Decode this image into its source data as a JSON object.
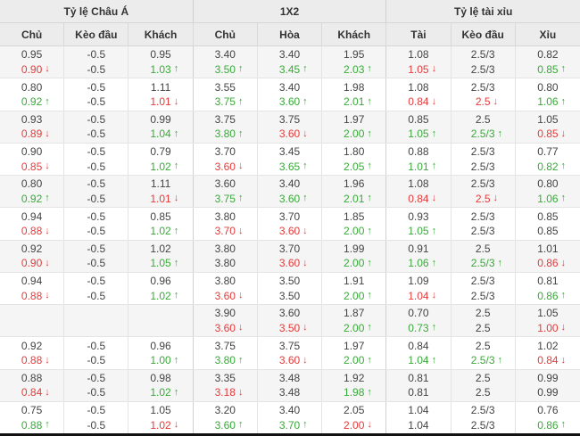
{
  "table": {
    "groups": [
      {
        "label": "Tỷ lệ Châu Á"
      },
      {
        "label": "1X2"
      },
      {
        "label": "Tỷ lệ tài xỉu"
      }
    ],
    "columns": [
      "Chủ",
      "Kèo đầu",
      "Khách",
      "Chủ",
      "Hòa",
      "Khách",
      "Tài",
      "Kèo đầu",
      "Xỉu"
    ],
    "icons": {
      "up_arrow": "↑",
      "down_arrow": "↓"
    },
    "colors": {
      "up": "#3aa93a",
      "down": "#e43b3b",
      "text": "#444444",
      "header_bg": "#ececec",
      "row_alt_bg": "#f5f5f5",
      "border": "#e4e4e4"
    },
    "rows": [
      {
        "line1": [
          {
            "v": "0.95",
            "d": ""
          },
          {
            "v": "-0.5",
            "d": ""
          },
          {
            "v": "0.95",
            "d": ""
          },
          {
            "v": "3.40",
            "d": ""
          },
          {
            "v": "3.40",
            "d": ""
          },
          {
            "v": "1.95",
            "d": ""
          },
          {
            "v": "1.08",
            "d": ""
          },
          {
            "v": "2.5/3",
            "d": ""
          },
          {
            "v": "0.82",
            "d": ""
          }
        ],
        "line2": [
          {
            "v": "0.90",
            "d": "d"
          },
          {
            "v": "-0.5",
            "d": ""
          },
          {
            "v": "1.03",
            "d": "u"
          },
          {
            "v": "3.50",
            "d": "u"
          },
          {
            "v": "3.45",
            "d": "u"
          },
          {
            "v": "2.03",
            "d": "u"
          },
          {
            "v": "1.05",
            "d": "d"
          },
          {
            "v": "2.5/3",
            "d": ""
          },
          {
            "v": "0.85",
            "d": "u"
          }
        ]
      },
      {
        "line1": [
          {
            "v": "0.80",
            "d": ""
          },
          {
            "v": "-0.5",
            "d": ""
          },
          {
            "v": "1.11",
            "d": ""
          },
          {
            "v": "3.55",
            "d": ""
          },
          {
            "v": "3.40",
            "d": ""
          },
          {
            "v": "1.98",
            "d": ""
          },
          {
            "v": "1.08",
            "d": ""
          },
          {
            "v": "2.5/3",
            "d": ""
          },
          {
            "v": "0.80",
            "d": ""
          }
        ],
        "line2": [
          {
            "v": "0.92",
            "d": "u"
          },
          {
            "v": "-0.5",
            "d": ""
          },
          {
            "v": "1.01",
            "d": "d"
          },
          {
            "v": "3.75",
            "d": "u"
          },
          {
            "v": "3.60",
            "d": "u"
          },
          {
            "v": "2.01",
            "d": "u"
          },
          {
            "v": "0.84",
            "d": "d"
          },
          {
            "v": "2.5",
            "d": "d"
          },
          {
            "v": "1.06",
            "d": "u"
          }
        ]
      },
      {
        "line1": [
          {
            "v": "0.93",
            "d": ""
          },
          {
            "v": "-0.5",
            "d": ""
          },
          {
            "v": "0.99",
            "d": ""
          },
          {
            "v": "3.75",
            "d": ""
          },
          {
            "v": "3.75",
            "d": ""
          },
          {
            "v": "1.97",
            "d": ""
          },
          {
            "v": "0.85",
            "d": ""
          },
          {
            "v": "2.5",
            "d": ""
          },
          {
            "v": "1.05",
            "d": ""
          }
        ],
        "line2": [
          {
            "v": "0.89",
            "d": "d"
          },
          {
            "v": "-0.5",
            "d": ""
          },
          {
            "v": "1.04",
            "d": "u"
          },
          {
            "v": "3.80",
            "d": "u"
          },
          {
            "v": "3.60",
            "d": "d"
          },
          {
            "v": "2.00",
            "d": "u"
          },
          {
            "v": "1.05",
            "d": "u"
          },
          {
            "v": "2.5/3",
            "d": "u"
          },
          {
            "v": "0.85",
            "d": "d"
          }
        ]
      },
      {
        "line1": [
          {
            "v": "0.90",
            "d": ""
          },
          {
            "v": "-0.5",
            "d": ""
          },
          {
            "v": "0.79",
            "d": ""
          },
          {
            "v": "3.70",
            "d": ""
          },
          {
            "v": "3.45",
            "d": ""
          },
          {
            "v": "1.80",
            "d": ""
          },
          {
            "v": "0.88",
            "d": ""
          },
          {
            "v": "2.5/3",
            "d": ""
          },
          {
            "v": "0.77",
            "d": ""
          }
        ],
        "line2": [
          {
            "v": "0.85",
            "d": "d"
          },
          {
            "v": "-0.5",
            "d": ""
          },
          {
            "v": "1.02",
            "d": "u"
          },
          {
            "v": "3.60",
            "d": "d"
          },
          {
            "v": "3.65",
            "d": "u"
          },
          {
            "v": "2.05",
            "d": "u"
          },
          {
            "v": "1.01",
            "d": "u"
          },
          {
            "v": "2.5/3",
            "d": ""
          },
          {
            "v": "0.82",
            "d": "u"
          }
        ]
      },
      {
        "line1": [
          {
            "v": "0.80",
            "d": ""
          },
          {
            "v": "-0.5",
            "d": ""
          },
          {
            "v": "1.11",
            "d": ""
          },
          {
            "v": "3.60",
            "d": ""
          },
          {
            "v": "3.40",
            "d": ""
          },
          {
            "v": "1.96",
            "d": ""
          },
          {
            "v": "1.08",
            "d": ""
          },
          {
            "v": "2.5/3",
            "d": ""
          },
          {
            "v": "0.80",
            "d": ""
          }
        ],
        "line2": [
          {
            "v": "0.92",
            "d": "u"
          },
          {
            "v": "-0.5",
            "d": ""
          },
          {
            "v": "1.01",
            "d": "d"
          },
          {
            "v": "3.75",
            "d": "u"
          },
          {
            "v": "3.60",
            "d": "u"
          },
          {
            "v": "2.01",
            "d": "u"
          },
          {
            "v": "0.84",
            "d": "d"
          },
          {
            "v": "2.5",
            "d": "d"
          },
          {
            "v": "1.06",
            "d": "u"
          }
        ]
      },
      {
        "line1": [
          {
            "v": "0.94",
            "d": ""
          },
          {
            "v": "-0.5",
            "d": ""
          },
          {
            "v": "0.85",
            "d": ""
          },
          {
            "v": "3.80",
            "d": ""
          },
          {
            "v": "3.70",
            "d": ""
          },
          {
            "v": "1.85",
            "d": ""
          },
          {
            "v": "0.93",
            "d": ""
          },
          {
            "v": "2.5/3",
            "d": ""
          },
          {
            "v": "0.85",
            "d": ""
          }
        ],
        "line2": [
          {
            "v": "0.88",
            "d": "d"
          },
          {
            "v": "-0.5",
            "d": ""
          },
          {
            "v": "1.02",
            "d": "u"
          },
          {
            "v": "3.70",
            "d": "d"
          },
          {
            "v": "3.60",
            "d": "d"
          },
          {
            "v": "2.00",
            "d": "u"
          },
          {
            "v": "1.05",
            "d": "u"
          },
          {
            "v": "2.5/3",
            "d": ""
          },
          {
            "v": "0.85",
            "d": ""
          }
        ]
      },
      {
        "line1": [
          {
            "v": "0.92",
            "d": ""
          },
          {
            "v": "-0.5",
            "d": ""
          },
          {
            "v": "1.02",
            "d": ""
          },
          {
            "v": "3.80",
            "d": ""
          },
          {
            "v": "3.70",
            "d": ""
          },
          {
            "v": "1.99",
            "d": ""
          },
          {
            "v": "0.91",
            "d": ""
          },
          {
            "v": "2.5",
            "d": ""
          },
          {
            "v": "1.01",
            "d": ""
          }
        ],
        "line2": [
          {
            "v": "0.90",
            "d": "d"
          },
          {
            "v": "-0.5",
            "d": ""
          },
          {
            "v": "1.05",
            "d": "u"
          },
          {
            "v": "3.80",
            "d": ""
          },
          {
            "v": "3.60",
            "d": "d"
          },
          {
            "v": "2.00",
            "d": "u"
          },
          {
            "v": "1.06",
            "d": "u"
          },
          {
            "v": "2.5/3",
            "d": "u"
          },
          {
            "v": "0.86",
            "d": "d"
          }
        ]
      },
      {
        "line1": [
          {
            "v": "0.94",
            "d": ""
          },
          {
            "v": "-0.5",
            "d": ""
          },
          {
            "v": "0.96",
            "d": ""
          },
          {
            "v": "3.80",
            "d": ""
          },
          {
            "v": "3.50",
            "d": ""
          },
          {
            "v": "1.91",
            "d": ""
          },
          {
            "v": "1.09",
            "d": ""
          },
          {
            "v": "2.5/3",
            "d": ""
          },
          {
            "v": "0.81",
            "d": ""
          }
        ],
        "line2": [
          {
            "v": "0.88",
            "d": "d"
          },
          {
            "v": "-0.5",
            "d": ""
          },
          {
            "v": "1.02",
            "d": "u"
          },
          {
            "v": "3.60",
            "d": "d"
          },
          {
            "v": "3.50",
            "d": ""
          },
          {
            "v": "2.00",
            "d": "u"
          },
          {
            "v": "1.04",
            "d": "d"
          },
          {
            "v": "2.5/3",
            "d": ""
          },
          {
            "v": "0.86",
            "d": "u"
          }
        ]
      },
      {
        "line1": [
          {
            "v": "",
            "d": ""
          },
          {
            "v": "",
            "d": ""
          },
          {
            "v": "",
            "d": ""
          },
          {
            "v": "3.90",
            "d": ""
          },
          {
            "v": "3.60",
            "d": ""
          },
          {
            "v": "1.87",
            "d": ""
          },
          {
            "v": "0.70",
            "d": ""
          },
          {
            "v": "2.5",
            "d": ""
          },
          {
            "v": "1.05",
            "d": ""
          }
        ],
        "line2": [
          {
            "v": "",
            "d": ""
          },
          {
            "v": "",
            "d": ""
          },
          {
            "v": "",
            "d": ""
          },
          {
            "v": "3.60",
            "d": "d"
          },
          {
            "v": "3.50",
            "d": "d"
          },
          {
            "v": "2.00",
            "d": "u"
          },
          {
            "v": "0.73",
            "d": "u"
          },
          {
            "v": "2.5",
            "d": ""
          },
          {
            "v": "1.00",
            "d": "d"
          }
        ]
      },
      {
        "line1": [
          {
            "v": "0.92",
            "d": ""
          },
          {
            "v": "-0.5",
            "d": ""
          },
          {
            "v": "0.96",
            "d": ""
          },
          {
            "v": "3.75",
            "d": ""
          },
          {
            "v": "3.75",
            "d": ""
          },
          {
            "v": "1.97",
            "d": ""
          },
          {
            "v": "0.84",
            "d": ""
          },
          {
            "v": "2.5",
            "d": ""
          },
          {
            "v": "1.02",
            "d": ""
          }
        ],
        "line2": [
          {
            "v": "0.88",
            "d": "d"
          },
          {
            "v": "-0.5",
            "d": ""
          },
          {
            "v": "1.00",
            "d": "u"
          },
          {
            "v": "3.80",
            "d": "u"
          },
          {
            "v": "3.60",
            "d": "d"
          },
          {
            "v": "2.00",
            "d": "u"
          },
          {
            "v": "1.04",
            "d": "u"
          },
          {
            "v": "2.5/3",
            "d": "u"
          },
          {
            "v": "0.84",
            "d": "d"
          }
        ]
      },
      {
        "line1": [
          {
            "v": "0.88",
            "d": ""
          },
          {
            "v": "-0.5",
            "d": ""
          },
          {
            "v": "0.98",
            "d": ""
          },
          {
            "v": "3.35",
            "d": ""
          },
          {
            "v": "3.48",
            "d": ""
          },
          {
            "v": "1.92",
            "d": ""
          },
          {
            "v": "0.81",
            "d": ""
          },
          {
            "v": "2.5",
            "d": ""
          },
          {
            "v": "0.99",
            "d": ""
          }
        ],
        "line2": [
          {
            "v": "0.84",
            "d": "d"
          },
          {
            "v": "-0.5",
            "d": ""
          },
          {
            "v": "1.02",
            "d": "u"
          },
          {
            "v": "3.18",
            "d": "d"
          },
          {
            "v": "3.48",
            "d": ""
          },
          {
            "v": "1.98",
            "d": "u"
          },
          {
            "v": "0.81",
            "d": ""
          },
          {
            "v": "2.5",
            "d": ""
          },
          {
            "v": "0.99",
            "d": ""
          }
        ]
      },
      {
        "line1": [
          {
            "v": "0.75",
            "d": ""
          },
          {
            "v": "-0.5",
            "d": ""
          },
          {
            "v": "1.05",
            "d": ""
          },
          {
            "v": "3.20",
            "d": ""
          },
          {
            "v": "3.40",
            "d": ""
          },
          {
            "v": "2.05",
            "d": ""
          },
          {
            "v": "1.04",
            "d": ""
          },
          {
            "v": "2.5/3",
            "d": ""
          },
          {
            "v": "0.76",
            "d": ""
          }
        ],
        "line2": [
          {
            "v": "0.88",
            "d": "u"
          },
          {
            "v": "-0.5",
            "d": ""
          },
          {
            "v": "1.02",
            "d": "d"
          },
          {
            "v": "3.60",
            "d": "u"
          },
          {
            "v": "3.70",
            "d": "u"
          },
          {
            "v": "2.00",
            "d": "d"
          },
          {
            "v": "1.04",
            "d": ""
          },
          {
            "v": "2.5/3",
            "d": ""
          },
          {
            "v": "0.86",
            "d": "u"
          }
        ]
      }
    ]
  }
}
